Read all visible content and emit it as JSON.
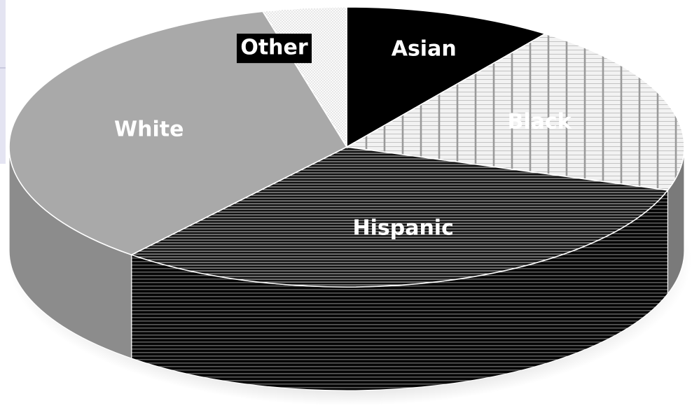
{
  "chart_data": {
    "type": "pie",
    "title": "",
    "three_d": true,
    "legend": "none",
    "slices": [
      {
        "label": "Asian",
        "value": 10,
        "fill": "#000000",
        "label_color": "#ffffff",
        "label_bg": ""
      },
      {
        "label": "Black",
        "value": 20,
        "fill": "crosshatch",
        "label_color": "#ffffff",
        "label_bg": ""
      },
      {
        "label": "Hispanic",
        "value": 31,
        "fill": "horizontal-stripes",
        "label_color": "#ffffff",
        "label_bg": ""
      },
      {
        "label": "White",
        "value": 35,
        "fill": "#a9a9a9",
        "label_color": "#ffffff",
        "label_bg": ""
      },
      {
        "label": "Other",
        "value": 4,
        "fill": "dotted",
        "label_color": "#ffffff",
        "label_bg": "#000000"
      }
    ]
  }
}
